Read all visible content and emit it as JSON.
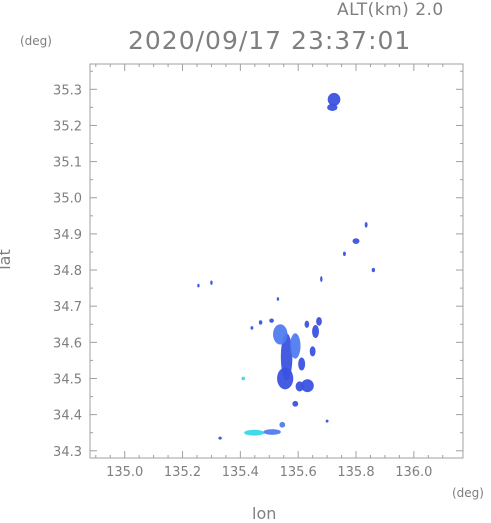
{
  "header": {
    "altitude_label": "ALT(km) 2.0",
    "timestamp": "2020/09/17 23:37:01"
  },
  "chart_data": {
    "type": "heatmap",
    "title": "2020/09/17 23:37:01",
    "subtitle": "ALT(km) 2.0",
    "xlabel": "lon",
    "ylabel": "lat",
    "xunit": "(deg)",
    "yunit": "(deg)",
    "xlim": [
      134.88,
      136.17
    ],
    "ylim": [
      34.28,
      35.37
    ],
    "xticks": [
      135.0,
      135.2,
      135.4,
      135.6,
      135.8,
      136.0
    ],
    "xtick_labels": [
      "135.0",
      "135.2",
      "135.4",
      "135.6",
      "135.8",
      "136.0"
    ],
    "yticks": [
      34.3,
      34.4,
      34.5,
      34.6,
      34.7,
      34.8,
      34.9,
      35.0,
      35.1,
      35.2,
      35.3
    ],
    "ytick_labels": [
      "34.3",
      "34.4",
      "34.5",
      "34.6",
      "34.7",
      "34.8",
      "34.9",
      "35.0",
      "35.1",
      "35.2",
      "35.3"
    ],
    "grid": false,
    "colors": {
      "deep": "#3a52e0",
      "mid": "#4f7cf0",
      "light": "#5fb4f0",
      "cyan": "#38d8e8"
    },
    "echoes": [
      {
        "lon": 135.724,
        "lat": 35.272,
        "rlon": 0.022,
        "rlat": 0.018,
        "level": "deep"
      },
      {
        "lon": 135.718,
        "lat": 35.25,
        "rlon": 0.018,
        "rlat": 0.01,
        "level": "deep"
      },
      {
        "lon": 135.56,
        "lat": 34.56,
        "rlon": 0.02,
        "rlat": 0.065,
        "level": "deep"
      },
      {
        "lon": 135.555,
        "lat": 34.5,
        "rlon": 0.028,
        "rlat": 0.03,
        "level": "deep"
      },
      {
        "lon": 135.538,
        "lat": 34.622,
        "rlon": 0.025,
        "rlat": 0.028,
        "level": "mid"
      },
      {
        "lon": 135.59,
        "lat": 34.59,
        "rlon": 0.018,
        "rlat": 0.035,
        "level": "mid"
      },
      {
        "lon": 135.612,
        "lat": 34.54,
        "rlon": 0.012,
        "rlat": 0.018,
        "level": "deep"
      },
      {
        "lon": 135.632,
        "lat": 34.48,
        "rlon": 0.022,
        "rlat": 0.018,
        "level": "deep"
      },
      {
        "lon": 135.605,
        "lat": 34.478,
        "rlon": 0.014,
        "rlat": 0.014,
        "level": "deep"
      },
      {
        "lon": 135.66,
        "lat": 34.63,
        "rlon": 0.012,
        "rlat": 0.018,
        "level": "deep"
      },
      {
        "lon": 135.65,
        "lat": 34.575,
        "rlon": 0.01,
        "rlat": 0.014,
        "level": "deep"
      },
      {
        "lon": 135.672,
        "lat": 34.658,
        "rlon": 0.01,
        "rlat": 0.012,
        "level": "deep"
      },
      {
        "lon": 135.47,
        "lat": 34.655,
        "rlon": 0.006,
        "rlat": 0.006,
        "level": "deep"
      },
      {
        "lon": 135.508,
        "lat": 34.66,
        "rlon": 0.008,
        "rlat": 0.006,
        "level": "deep"
      },
      {
        "lon": 135.44,
        "lat": 34.64,
        "rlon": 0.005,
        "rlat": 0.005,
        "level": "deep"
      },
      {
        "lon": 135.59,
        "lat": 34.43,
        "rlon": 0.01,
        "rlat": 0.008,
        "level": "deep"
      },
      {
        "lon": 135.545,
        "lat": 34.372,
        "rlon": 0.01,
        "rlat": 0.008,
        "level": "mid"
      },
      {
        "lon": 135.448,
        "lat": 34.35,
        "rlon": 0.035,
        "rlat": 0.008,
        "level": "cyan"
      },
      {
        "lon": 135.51,
        "lat": 34.352,
        "rlon": 0.03,
        "rlat": 0.008,
        "level": "mid"
      },
      {
        "lon": 135.41,
        "lat": 34.5,
        "rlon": 0.006,
        "rlat": 0.005,
        "level": "cyan"
      },
      {
        "lon": 135.8,
        "lat": 34.88,
        "rlon": 0.012,
        "rlat": 0.008,
        "level": "deep"
      },
      {
        "lon": 135.835,
        "lat": 34.925,
        "rlon": 0.005,
        "rlat": 0.008,
        "level": "deep"
      },
      {
        "lon": 135.86,
        "lat": 34.8,
        "rlon": 0.006,
        "rlat": 0.006,
        "level": "deep"
      },
      {
        "lon": 135.76,
        "lat": 34.845,
        "rlon": 0.005,
        "rlat": 0.006,
        "level": "deep"
      },
      {
        "lon": 135.68,
        "lat": 34.775,
        "rlon": 0.004,
        "rlat": 0.008,
        "level": "deep"
      },
      {
        "lon": 135.63,
        "lat": 34.65,
        "rlon": 0.008,
        "rlat": 0.01,
        "level": "deep"
      },
      {
        "lon": 135.7,
        "lat": 34.382,
        "rlon": 0.005,
        "rlat": 0.004,
        "level": "deep"
      },
      {
        "lon": 135.33,
        "lat": 34.335,
        "rlon": 0.006,
        "rlat": 0.004,
        "level": "deep"
      },
      {
        "lon": 135.255,
        "lat": 34.757,
        "rlon": 0.004,
        "rlat": 0.005,
        "level": "deep"
      },
      {
        "lon": 135.3,
        "lat": 34.765,
        "rlon": 0.004,
        "rlat": 0.006,
        "level": "deep"
      },
      {
        "lon": 135.53,
        "lat": 34.72,
        "rlon": 0.004,
        "rlat": 0.005,
        "level": "deep"
      }
    ]
  }
}
